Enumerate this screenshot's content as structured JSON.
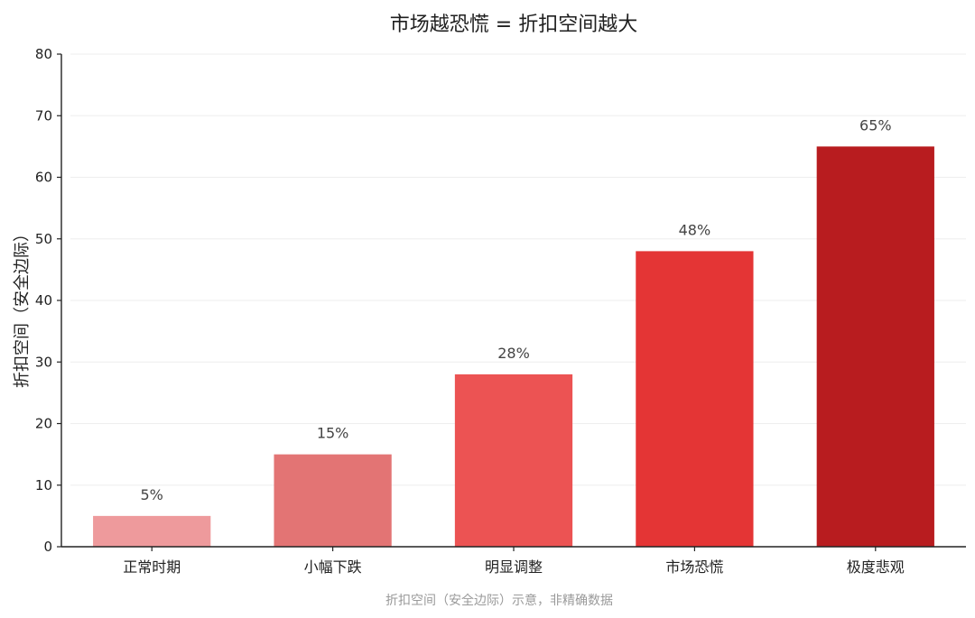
{
  "chart_data": {
    "type": "bar",
    "title": "市场越恐慌 = 折扣空间越大",
    "ylabel": "折扣空间（安全边际）",
    "xlabel": "",
    "categories": [
      "正常时期",
      "小幅下跌",
      "明显调整",
      "市场恐慌",
      "极度悲观"
    ],
    "values": [
      5,
      15,
      28,
      48,
      65
    ],
    "value_labels": [
      "5%",
      "15%",
      "28%",
      "48%",
      "65%"
    ],
    "bar_colors": [
      "#ee9a9c",
      "#e37474",
      "#ec5353",
      "#e43535",
      "#b81c1f"
    ],
    "ylim": [
      0,
      80
    ],
    "yticks": [
      0,
      10,
      20,
      30,
      40,
      50,
      60,
      70,
      80
    ],
    "grid": true,
    "footnote": "折扣空间（安全边际）示意，非精确数据"
  }
}
